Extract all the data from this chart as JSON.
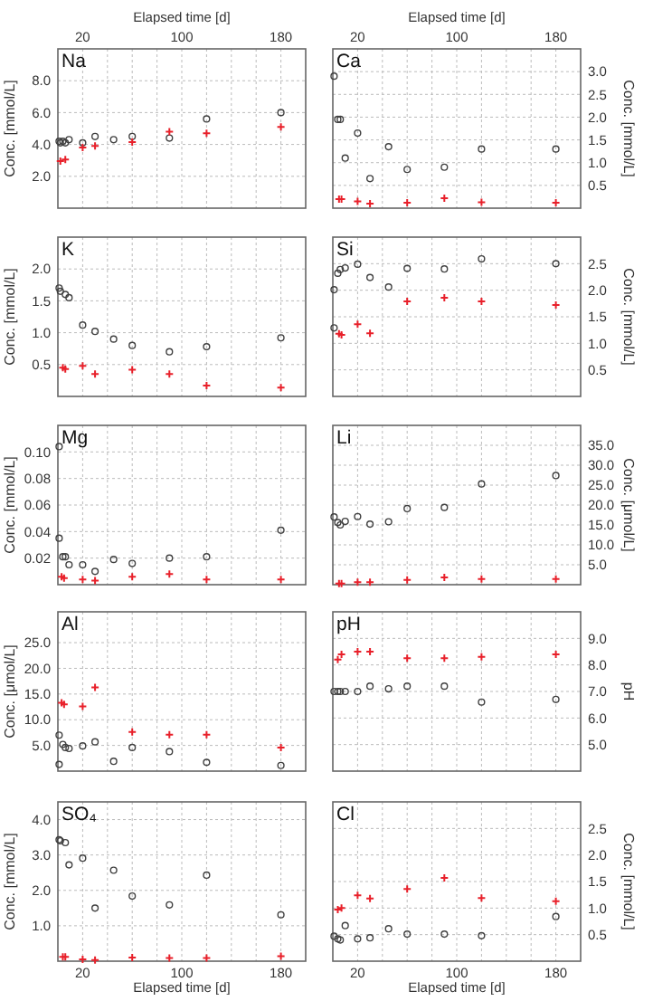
{
  "chart_data": [
    {
      "type": "scatter",
      "title": "Na",
      "ylabel": "Conc. [mmol/L]",
      "xlabel": "Elapsed time [d]",
      "xlim": [
        0,
        200
      ],
      "xticks": [
        20,
        {
          "value": 40,
          "label": null
        },
        {
          "value": 60,
          "label": null
        },
        {
          "value": 80,
          "label": null
        },
        100,
        {
          "value": 120,
          "label": null
        },
        {
          "value": 140,
          "label": null
        },
        {
          "value": 160,
          "label": null
        },
        180
      ],
      "ylim": [
        0,
        10
      ],
      "yticks": [
        {
          "value": 2,
          "label": "2.0"
        },
        {
          "value": 4,
          "label": "4.0"
        },
        {
          "value": 6,
          "label": "6.0"
        },
        {
          "value": 8,
          "label": "8.0"
        }
      ],
      "grid": true,
      "series": [
        {
          "color": "#404040",
          "marker": "circle",
          "x": [
            1,
            2,
            4,
            6,
            9,
            20,
            30,
            45,
            60,
            90,
            120,
            180
          ],
          "values": [
            4.2,
            4.1,
            4.2,
            4.1,
            4.3,
            4.1,
            4.5,
            4.3,
            4.5,
            4.4,
            5.6,
            6.0
          ]
        },
        {
          "color": "#e8202a",
          "marker": "cross",
          "x": [
            2,
            6,
            20,
            30,
            60,
            90,
            120,
            180
          ],
          "values": [
            2.95,
            3.05,
            3.8,
            3.9,
            4.15,
            4.8,
            4.7,
            5.1
          ]
        }
      ]
    },
    {
      "type": "scatter",
      "title": "Ca",
      "ylabel": "Conc. [mmol/L]",
      "xlabel": "Elapsed time [d]",
      "xlim": [
        0,
        200
      ],
      "xticks": [
        20,
        {
          "value": 40,
          "label": null
        },
        {
          "value": 60,
          "label": null
        },
        {
          "value": 80,
          "label": null
        },
        100,
        {
          "value": 120,
          "label": null
        },
        {
          "value": 140,
          "label": null
        },
        {
          "value": 160,
          "label": null
        },
        180
      ],
      "ylim": [
        0,
        3.5
      ],
      "yticks": [
        0.5,
        {
          "value": 1,
          "label": "1.0"
        },
        1.5,
        {
          "value": 2,
          "label": "2.0"
        },
        2.5,
        {
          "value": 3,
          "label": "3.0"
        }
      ],
      "grid": true,
      "series": [
        {
          "color": "#404040",
          "marker": "circle",
          "x": [
            1,
            4,
            6,
            10,
            20,
            30,
            45,
            60,
            90,
            120,
            180
          ],
          "values": [
            2.9,
            1.95,
            1.95,
            1.1,
            1.65,
            0.65,
            1.35,
            0.85,
            0.9,
            1.3,
            1.3
          ]
        },
        {
          "color": "#e8202a",
          "marker": "cross",
          "x": [
            5,
            7,
            20,
            30,
            60,
            90,
            120,
            180
          ],
          "values": [
            0.2,
            0.2,
            0.15,
            0.1,
            0.12,
            0.22,
            0.13,
            0.12
          ]
        }
      ]
    },
    {
      "type": "scatter",
      "title": "K",
      "ylabel": "Conc. [mmol/L]",
      "tick_labels": "y",
      "xlim": [
        0,
        200
      ],
      "xticks": [
        20,
        40,
        60,
        80,
        100,
        120,
        140,
        160,
        180
      ],
      "ylim": [
        0,
        2.5
      ],
      "yticks": [
        0.5,
        {
          "value": 1,
          "label": "1.0"
        },
        1.5,
        {
          "value": 2,
          "label": "2.0"
        }
      ],
      "grid": true,
      "series": [
        {
          "color": "#404040",
          "marker": "circle",
          "x": [
            1,
            2,
            6,
            9,
            20,
            30,
            45,
            60,
            90,
            120,
            180
          ],
          "values": [
            1.7,
            1.65,
            1.6,
            1.55,
            1.12,
            1.02,
            0.9,
            0.8,
            0.7,
            0.78,
            0.92
          ]
        },
        {
          "color": "#e8202a",
          "marker": "cross",
          "x": [
            4,
            6,
            20,
            30,
            60,
            90,
            120,
            180
          ],
          "values": [
            0.45,
            0.43,
            0.48,
            0.35,
            0.42,
            0.35,
            0.17,
            0.14
          ]
        }
      ]
    },
    {
      "type": "scatter",
      "title": "Si",
      "ylabel": "Conc. [mmol/L]",
      "tick_labels": "y",
      "xlim": [
        0,
        200
      ],
      "xticks": [
        20,
        40,
        60,
        80,
        100,
        120,
        140,
        160,
        180
      ],
      "ylim": [
        0,
        3
      ],
      "yticks": [
        0.5,
        {
          "value": 1,
          "label": "1.0"
        },
        1.5,
        {
          "value": 2,
          "label": "2.0"
        },
        2.5
      ],
      "grid": true,
      "series": [
        {
          "color": "#404040",
          "marker": "circle",
          "x": [
            1,
            1,
            4,
            6,
            10,
            20,
            30,
            45,
            60,
            90,
            120,
            180
          ],
          "values": [
            2.01,
            1.29,
            2.32,
            2.39,
            2.42,
            2.49,
            2.24,
            2.06,
            2.41,
            2.4,
            2.59,
            2.5
          ]
        },
        {
          "color": "#e8202a",
          "marker": "cross",
          "x": [
            5,
            7,
            20,
            30,
            60,
            90,
            120,
            180
          ],
          "values": [
            1.18,
            1.16,
            1.36,
            1.19,
            1.79,
            1.86,
            1.79,
            1.72
          ]
        }
      ]
    },
    {
      "type": "scatter",
      "title": "Mg",
      "ylabel": "Conc. [mmol/L]",
      "tick_labels": "y",
      "xlim": [
        0,
        200
      ],
      "xticks": [
        20,
        40,
        60,
        80,
        100,
        120,
        140,
        160,
        180
      ],
      "ylim": [
        0,
        0.12
      ],
      "yticks": [
        0.02,
        0.04,
        0.06,
        0.08,
        {
          "value": 0.1,
          "label": "0.10"
        }
      ],
      "grid": true,
      "series": [
        {
          "color": "#404040",
          "marker": "circle",
          "x": [
            1,
            1,
            4,
            6,
            9,
            20,
            30,
            45,
            60,
            90,
            120,
            180
          ],
          "values": [
            0.104,
            0.035,
            0.021,
            0.021,
            0.015,
            0.015,
            0.01,
            0.019,
            0.016,
            0.02,
            0.021,
            0.041
          ]
        },
        {
          "color": "#e8202a",
          "marker": "cross",
          "x": [
            3,
            5,
            20,
            30,
            60,
            90,
            120,
            180
          ],
          "values": [
            0.006,
            0.005,
            0.004,
            0.003,
            0.006,
            0.008,
            0.004,
            0.004
          ]
        }
      ]
    },
    {
      "type": "scatter",
      "title": "Li",
      "ylabel": "Conc. [μmol/L]",
      "tick_labels": "y",
      "xlim": [
        0,
        200
      ],
      "xticks": [
        20,
        40,
        60,
        80,
        100,
        120,
        140,
        160,
        180
      ],
      "ylim": [
        0,
        40
      ],
      "yticks": [
        {
          "value": 5,
          "label": "5.0"
        },
        {
          "value": 10,
          "label": "10.0"
        },
        {
          "value": 15,
          "label": "15.0"
        },
        {
          "value": 20,
          "label": "20.0"
        },
        {
          "value": 25,
          "label": "25.0"
        },
        {
          "value": 30,
          "label": "30.0"
        },
        {
          "value": 35,
          "label": "35.0"
        }
      ],
      "grid": true,
      "series": [
        {
          "color": "#404040",
          "marker": "circle",
          "x": [
            1,
            4,
            6,
            10,
            20,
            30,
            45,
            60,
            90,
            120,
            180
          ],
          "values": [
            17.0,
            15.6,
            15.0,
            15.9,
            17.1,
            15.2,
            15.8,
            19.1,
            19.4,
            25.3,
            27.4
          ]
        },
        {
          "color": "#e8202a",
          "marker": "cross",
          "x": [
            5,
            7,
            20,
            30,
            60,
            90,
            120,
            180
          ],
          "values": [
            0.3,
            0.3,
            0.6,
            0.6,
            1.2,
            1.8,
            1.4,
            1.4
          ]
        }
      ]
    },
    {
      "type": "scatter",
      "title": "Al",
      "ylabel": "Conc. [μmol/L]",
      "tick_labels": "y",
      "xlim": [
        0,
        200
      ],
      "xticks": [
        20,
        40,
        60,
        80,
        100,
        120,
        140,
        160,
        180
      ],
      "ylim": [
        0,
        31
      ],
      "yticks": [
        {
          "value": 5,
          "label": "5.0"
        },
        {
          "value": 10,
          "label": "10.0"
        },
        {
          "value": 15,
          "label": "15.0"
        },
        {
          "value": 20,
          "label": "20.0"
        },
        {
          "value": 25,
          "label": "25.0"
        }
      ],
      "grid": true,
      "series": [
        {
          "color": "#404040",
          "marker": "circle",
          "x": [
            1,
            1,
            4,
            6,
            9,
            20,
            30,
            45,
            60,
            90,
            120,
            180
          ],
          "values": [
            7.0,
            1.3,
            5.2,
            4.6,
            4.4,
            4.9,
            5.7,
            1.9,
            4.6,
            3.8,
            1.7,
            1.1
          ]
        },
        {
          "color": "#e8202a",
          "marker": "cross",
          "x": [
            3,
            5,
            20,
            30,
            60,
            90,
            120,
            180
          ],
          "values": [
            13.3,
            13.0,
            12.6,
            16.3,
            7.6,
            7.1,
            7.1,
            4.6
          ]
        }
      ]
    },
    {
      "type": "scatter",
      "title": "pH",
      "ylabel": "pH",
      "tick_labels": "y",
      "xlim": [
        0,
        200
      ],
      "xticks": [
        20,
        40,
        60,
        80,
        100,
        120,
        140,
        160,
        180
      ],
      "ylim": [
        4,
        10
      ],
      "yticks": [
        {
          "value": 5,
          "label": "5.0"
        },
        {
          "value": 6,
          "label": "6.0"
        },
        {
          "value": 7,
          "label": "7.0"
        },
        {
          "value": 8,
          "label": "8.0"
        },
        {
          "value": 9,
          "label": "9.0"
        }
      ],
      "grid": true,
      "series": [
        {
          "color": "#404040",
          "marker": "circle",
          "x": [
            1,
            4,
            6,
            10,
            20,
            30,
            45,
            60,
            90,
            120,
            180
          ],
          "values": [
            7.0,
            7.0,
            7.0,
            7.0,
            7.0,
            7.2,
            7.1,
            7.2,
            7.2,
            6.6,
            6.7
          ]
        },
        {
          "color": "#e8202a",
          "marker": "cross",
          "x": [
            4,
            7,
            20,
            30,
            60,
            90,
            120,
            180
          ],
          "values": [
            8.2,
            8.4,
            8.5,
            8.5,
            8.25,
            8.25,
            8.3,
            8.4
          ]
        }
      ]
    },
    {
      "type": "scatter",
      "title": "SO₄",
      "ylabel": "Conc. [mmol/L]",
      "xlabel": "Elapsed time [d]",
      "xlim": [
        0,
        200
      ],
      "xticks": [
        20,
        {
          "value": 40,
          "label": null
        },
        {
          "value": 60,
          "label": null
        },
        {
          "value": 80,
          "label": null
        },
        100,
        {
          "value": 120,
          "label": null
        },
        {
          "value": 140,
          "label": null
        },
        {
          "value": 160,
          "label": null
        },
        180
      ],
      "ylim": [
        0,
        4.5
      ],
      "yticks": [
        {
          "value": 1,
          "label": "1.0"
        },
        {
          "value": 2,
          "label": "2.0"
        },
        {
          "value": 3,
          "label": "3.0"
        },
        {
          "value": 4,
          "label": "4.0"
        }
      ],
      "grid": true,
      "series": [
        {
          "color": "#404040",
          "marker": "circle",
          "x": [
            1,
            2,
            6,
            9,
            20,
            30,
            45,
            60,
            90,
            120,
            180
          ],
          "values": [
            3.43,
            3.4,
            3.35,
            2.72,
            2.91,
            1.5,
            2.57,
            1.84,
            1.59,
            2.43,
            1.31
          ]
        },
        {
          "color": "#e8202a",
          "marker": "cross",
          "x": [
            4,
            6,
            20,
            30,
            60,
            90,
            120,
            180
          ],
          "values": [
            0.12,
            0.12,
            0.05,
            0.03,
            0.1,
            0.09,
            0.09,
            0.14
          ]
        }
      ]
    },
    {
      "type": "scatter",
      "title": "Cl",
      "ylabel": "Conc. [mmol/L]",
      "xlabel": "Elapsed time [d]",
      "xlim": [
        0,
        200
      ],
      "xticks": [
        20,
        {
          "value": 40,
          "label": null
        },
        {
          "value": 60,
          "label": null
        },
        {
          "value": 80,
          "label": null
        },
        100,
        {
          "value": 120,
          "label": null
        },
        {
          "value": 140,
          "label": null
        },
        {
          "value": 160,
          "label": null
        },
        180
      ],
      "ylim": [
        0,
        3
      ],
      "yticks": [
        0.5,
        {
          "value": 1,
          "label": "1.0"
        },
        1.5,
        {
          "value": 2,
          "label": "2.0"
        },
        2.5
      ],
      "grid": true,
      "series": [
        {
          "color": "#404040",
          "marker": "circle",
          "x": [
            1,
            4,
            6,
            10,
            20,
            30,
            45,
            60,
            90,
            120,
            180
          ],
          "values": [
            0.47,
            0.42,
            0.4,
            0.67,
            0.42,
            0.44,
            0.61,
            0.51,
            0.51,
            0.48,
            0.84
          ]
        },
        {
          "color": "#e8202a",
          "marker": "cross",
          "x": [
            4,
            7,
            20,
            30,
            60,
            90,
            120,
            180
          ],
          "values": [
            0.97,
            1.0,
            1.24,
            1.18,
            1.36,
            1.57,
            1.19,
            1.13
          ]
        }
      ]
    }
  ]
}
